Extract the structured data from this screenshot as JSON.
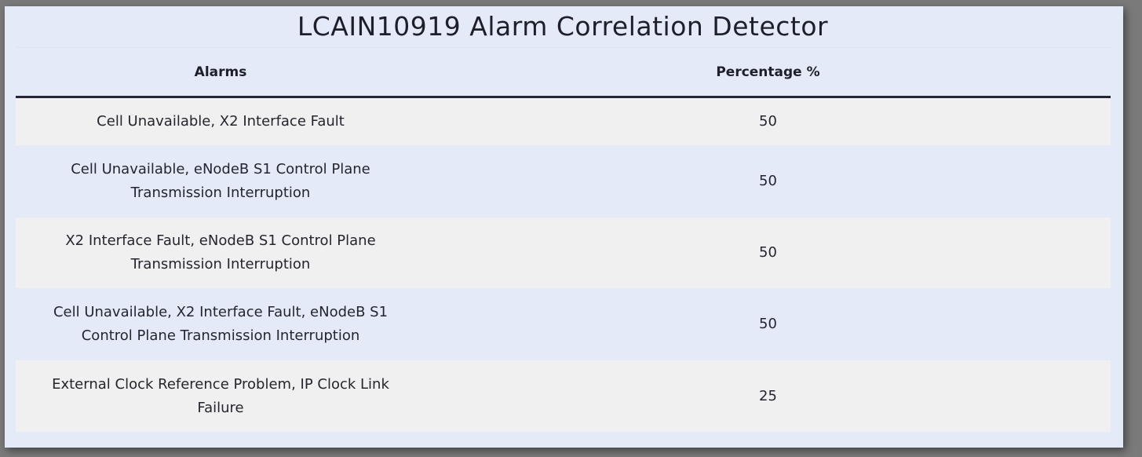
{
  "title": "LCAIN10919 Alarm Correlation Detector",
  "table": {
    "headers": [
      "Alarms",
      "Percentage %"
    ],
    "rows": [
      {
        "alarms": "Cell Unavailable, X2 Interface Fault",
        "percentage": "50"
      },
      {
        "alarms": "Cell Unavailable, eNodeB S1 Control Plane Transmission Interruption",
        "percentage": "50"
      },
      {
        "alarms": "X2 Interface Fault, eNodeB S1 Control Plane Transmission Interruption",
        "percentage": "50"
      },
      {
        "alarms": "Cell Unavailable, X2 Interface Fault, eNodeB S1 Control Plane Transmission Interruption",
        "percentage": "50"
      },
      {
        "alarms": "External Clock Reference Problem, IP Clock Link Failure",
        "percentage": "25"
      }
    ]
  }
}
